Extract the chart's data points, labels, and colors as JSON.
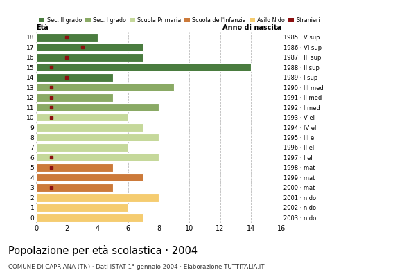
{
  "ages": [
    18,
    17,
    16,
    15,
    14,
    13,
    12,
    11,
    10,
    9,
    8,
    7,
    6,
    5,
    4,
    3,
    2,
    1,
    0
  ],
  "years": [
    "1985 · V sup",
    "1986 · VI sup",
    "1987 · III sup",
    "1988 · II sup",
    "1989 · I sup",
    "1990 · III med",
    "1991 · II med",
    "1992 · I med",
    "1993 · V el",
    "1994 · IV el",
    "1995 · III el",
    "1996 · II el",
    "1997 · I el",
    "1998 · mat",
    "1999 · mat",
    "2000 · mat",
    "2001 · nido",
    "2002 · nido",
    "2003 · nido"
  ],
  "values": [
    4,
    7,
    7,
    14,
    5,
    9,
    5,
    8,
    6,
    7,
    8,
    6,
    8,
    5,
    7,
    5,
    8,
    6,
    7
  ],
  "stranieri": [
    2,
    3,
    2,
    1,
    2,
    1,
    1,
    1,
    1,
    0,
    0,
    0,
    1,
    1,
    0,
    1,
    0,
    0,
    0
  ],
  "categories": {
    "sec2": [
      18,
      17,
      16,
      15,
      14
    ],
    "sec1": [
      13,
      12,
      11
    ],
    "primaria": [
      10,
      9,
      8,
      7,
      6
    ],
    "infanzia": [
      5,
      4,
      3
    ],
    "nido": [
      2,
      1,
      0
    ]
  },
  "colors": {
    "sec2": "#4a7c3f",
    "sec1": "#8aaa65",
    "primaria": "#c5d89a",
    "infanzia": "#cc7a3a",
    "nido": "#f5cc70"
  },
  "stranieri_color": "#8b1010",
  "legend_labels": [
    "Sec. II grado",
    "Sec. I grado",
    "Scuola Primaria",
    "Scuola dell'Infanzia",
    "Asilo Nido",
    "Stranieri"
  ],
  "title": "Popolazione per età scolastica · 2004",
  "subtitle": "COMUNE DI CAPRIANA (TN) · Dati ISTAT 1° gennaio 2004 · Elaborazione TUTTITALIA.IT",
  "xlabel_left": "Età",
  "xlabel_right": "Anno di nascita",
  "xlim": [
    0,
    16
  ],
  "xticks": [
    0,
    2,
    4,
    6,
    8,
    10,
    12,
    14,
    16
  ],
  "background_color": "#ffffff",
  "grid_color": "#bbbbbb"
}
